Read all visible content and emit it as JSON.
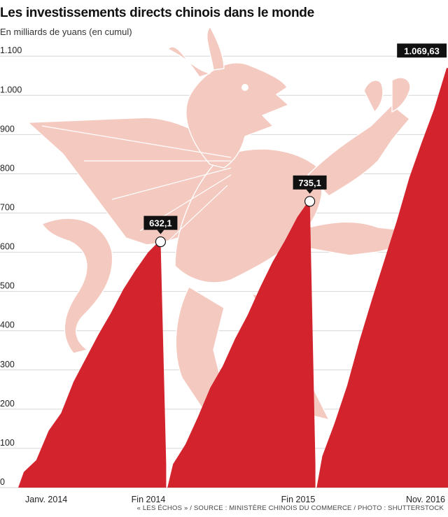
{
  "chart_data": {
    "type": "area",
    "title": "Les investissements directs chinois dans le monde",
    "subtitle": "En milliards de yuans (en cumul)",
    "ylim": [
      0,
      1100
    ],
    "yticks": [
      0,
      100,
      200,
      300,
      400,
      500,
      600,
      700,
      800,
      900,
      "1.000",
      "1.100"
    ],
    "xticks": [
      "Janv. 2014",
      "Fin 2014",
      "Fin 2015",
      "Nov. 2016"
    ],
    "grid": true,
    "series": [
      {
        "segment": 2014,
        "x": [
          "2014-01",
          "2014-02",
          "2014-03",
          "2014-04",
          "2014-05",
          "2014-06",
          "2014-07",
          "2014-08",
          "2014-09",
          "2014-10",
          "2014-11",
          "2014-12"
        ],
        "values": [
          40,
          70,
          145,
          190,
          270,
          330,
          390,
          445,
          505,
          555,
          600,
          632.1
        ]
      },
      {
        "segment": 2015,
        "x": [
          "2015-01",
          "2015-02",
          "2015-03",
          "2015-04",
          "2015-05",
          "2015-06",
          "2015-07",
          "2015-08",
          "2015-09",
          "2015-10",
          "2015-11",
          "2015-12"
        ],
        "values": [
          60,
          110,
          180,
          255,
          310,
          380,
          440,
          510,
          575,
          630,
          690,
          735.1
        ]
      },
      {
        "segment": 2016,
        "x": [
          "2016-01",
          "2016-02",
          "2016-03",
          "2016-04",
          "2016-05",
          "2016-06",
          "2016-07",
          "2016-08",
          "2016-09",
          "2016-10",
          "2016-11"
        ],
        "values": [
          80,
          165,
          260,
          375,
          480,
          580,
          680,
          790,
          880,
          965,
          1069.63
        ]
      }
    ],
    "annotations": [
      {
        "label": "632,1",
        "x": "2014-12",
        "value": 632.1,
        "marker": true
      },
      {
        "label": "735,1",
        "x": "2015-12",
        "value": 735.1,
        "marker": true
      },
      {
        "label": "1.069,63",
        "x": "2016-11",
        "value": 1069.63,
        "marker": false
      }
    ],
    "colors": {
      "area": "#d3232d",
      "dragon": "#f4c9bf",
      "dragon_line": "#ffffff",
      "label_bg": "#111111"
    }
  },
  "footer": {
    "source": "« LES ÉCHOS » / SOURCE : MINISTÈRE CHINOIS DU COMMERCE / PHOTO : SHUTTERSTOCK"
  }
}
